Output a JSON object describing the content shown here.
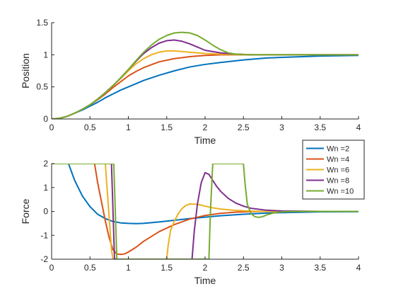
{
  "chart_data": [
    {
      "type": "line",
      "xlabel": "Time",
      "ylabel": "Position",
      "xlim": [
        0,
        4
      ],
      "ylim": [
        0,
        1.5
      ],
      "xticks": [
        0,
        0.5,
        1,
        1.5,
        2,
        2.5,
        3,
        3.5,
        4
      ],
      "yticks": [
        0,
        0.5,
        1,
        1.5
      ],
      "grid": false,
      "series": [
        {
          "name": "Wn =2",
          "color": "#0072BD",
          "x": [
            0,
            0.1,
            0.2,
            0.3,
            0.4,
            0.5,
            0.6,
            0.7,
            0.8,
            0.9,
            1.0,
            1.2,
            1.4,
            1.6,
            1.8,
            2.0,
            2.2,
            2.5,
            2.8,
            3.0,
            3.5,
            4.0
          ],
          "y": [
            0,
            0.01,
            0.04,
            0.09,
            0.14,
            0.2,
            0.26,
            0.33,
            0.39,
            0.45,
            0.5,
            0.6,
            0.68,
            0.75,
            0.81,
            0.85,
            0.88,
            0.92,
            0.95,
            0.96,
            0.98,
            0.99
          ]
        },
        {
          "name": "Wn =4",
          "color": "#D95319",
          "x": [
            0,
            0.1,
            0.2,
            0.3,
            0.4,
            0.5,
            0.6,
            0.7,
            0.8,
            0.9,
            1.0,
            1.1,
            1.2,
            1.4,
            1.6,
            1.8,
            2.0,
            2.2,
            2.5,
            3.0,
            3.5,
            4.0
          ],
          "y": [
            0,
            0.01,
            0.04,
            0.09,
            0.15,
            0.22,
            0.3,
            0.39,
            0.49,
            0.58,
            0.67,
            0.74,
            0.8,
            0.89,
            0.94,
            0.97,
            0.99,
            1.0,
            1.0,
            1.0,
            1.0,
            1.0
          ]
        },
        {
          "name": "Wn =6",
          "color": "#EDB120",
          "x": [
            0,
            0.1,
            0.2,
            0.3,
            0.4,
            0.5,
            0.6,
            0.7,
            0.8,
            0.9,
            1.0,
            1.1,
            1.2,
            1.3,
            1.4,
            1.5,
            1.6,
            1.8,
            2.0,
            2.2,
            2.5,
            3.0,
            3.5,
            4.0
          ],
          "y": [
            0,
            0.01,
            0.04,
            0.09,
            0.15,
            0.22,
            0.31,
            0.41,
            0.52,
            0.63,
            0.75,
            0.86,
            0.94,
            1.0,
            1.04,
            1.06,
            1.06,
            1.04,
            1.02,
            1.01,
            1.0,
            1.0,
            1.0,
            1.0
          ]
        },
        {
          "name": "Wn =8",
          "color": "#7E2F8E",
          "x": [
            0,
            0.1,
            0.2,
            0.3,
            0.4,
            0.5,
            0.6,
            0.7,
            0.8,
            0.9,
            1.0,
            1.1,
            1.2,
            1.3,
            1.4,
            1.5,
            1.6,
            1.7,
            1.8,
            1.9,
            2.0,
            2.2,
            2.4,
            2.6,
            3.0,
            3.5,
            4.0
          ],
          "y": [
            0,
            0.01,
            0.04,
            0.09,
            0.15,
            0.22,
            0.31,
            0.41,
            0.52,
            0.64,
            0.77,
            0.9,
            1.02,
            1.11,
            1.18,
            1.22,
            1.23,
            1.21,
            1.17,
            1.12,
            1.07,
            1.03,
            1.01,
            1.0,
            1.0,
            1.0,
            1.0
          ]
        },
        {
          "name": "Wn =10",
          "color": "#77AC30",
          "x": [
            0,
            0.1,
            0.2,
            0.3,
            0.4,
            0.5,
            0.6,
            0.7,
            0.8,
            0.9,
            1.0,
            1.1,
            1.2,
            1.3,
            1.4,
            1.5,
            1.6,
            1.7,
            1.8,
            1.9,
            2.0,
            2.1,
            2.2,
            2.3,
            2.4,
            2.6,
            2.8,
            3.0,
            3.5,
            4.0
          ],
          "y": [
            0,
            0.01,
            0.04,
            0.09,
            0.15,
            0.22,
            0.31,
            0.41,
            0.52,
            0.64,
            0.77,
            0.91,
            1.04,
            1.15,
            1.24,
            1.3,
            1.34,
            1.35,
            1.34,
            1.3,
            1.23,
            1.15,
            1.08,
            1.03,
            1.01,
            1.0,
            1.0,
            1.0,
            1.0,
            1.0
          ]
        }
      ]
    },
    {
      "type": "line",
      "xlabel": "Time",
      "ylabel": "Force",
      "xlim": [
        0,
        4
      ],
      "ylim": [
        -2,
        2
      ],
      "xticks": [
        0,
        0.5,
        1,
        1.5,
        2,
        2.5,
        3,
        3.5,
        4
      ],
      "yticks": [
        -2,
        -1,
        0,
        1,
        2
      ],
      "grid": false,
      "legend": {
        "placement": "top-right",
        "entries": [
          "Wn =2",
          "Wn =4",
          "Wn =6",
          "Wn =8",
          "Wn =10"
        ]
      },
      "series": [
        {
          "name": "Wn =2",
          "color": "#0072BD",
          "x": [
            0,
            0.22,
            0.3,
            0.4,
            0.5,
            0.6,
            0.7,
            0.8,
            0.9,
            1.0,
            1.1,
            1.2,
            1.4,
            1.6,
            1.8,
            2.0,
            2.2,
            2.5,
            2.8,
            3.0,
            3.5,
            4.0
          ],
          "y": [
            2,
            2,
            1.3,
            0.65,
            0.2,
            -0.12,
            -0.3,
            -0.42,
            -0.48,
            -0.5,
            -0.51,
            -0.5,
            -0.44,
            -0.37,
            -0.3,
            -0.24,
            -0.18,
            -0.12,
            -0.07,
            -0.05,
            -0.02,
            -0.01
          ]
        },
        {
          "name": "Wn =4",
          "color": "#D95319",
          "x": [
            0,
            0.56,
            0.6,
            0.65,
            0.7,
            0.75,
            0.8,
            0.85,
            0.9,
            0.95,
            1.0,
            1.1,
            1.2,
            1.4,
            1.6,
            1.8,
            2.0,
            2.2,
            2.4,
            2.7,
            3.0,
            3.5,
            4.0
          ],
          "y": [
            2,
            2,
            1.2,
            0.4,
            -0.4,
            -1.1,
            -1.6,
            -1.78,
            -1.8,
            -1.78,
            -1.7,
            -1.5,
            -1.25,
            -0.85,
            -0.55,
            -0.32,
            -0.17,
            -0.08,
            -0.03,
            0.0,
            0.01,
            0.0,
            0.0
          ]
        },
        {
          "name": "Wn =6",
          "color": "#EDB120",
          "x": [
            0,
            0.7,
            0.74,
            0.78,
            0.8,
            0.82,
            1.5,
            1.52,
            1.55,
            1.6,
            1.65,
            1.7,
            1.75,
            1.8,
            1.9,
            2.0,
            2.1,
            2.2,
            2.4,
            2.6,
            2.8,
            3.0,
            3.5,
            4.0
          ],
          "y": [
            2,
            2,
            0.2,
            -1.6,
            -2,
            -2,
            -2,
            -1.4,
            -0.8,
            -0.4,
            -0.1,
            0.12,
            0.25,
            0.31,
            0.3,
            0.22,
            0.15,
            0.1,
            0.04,
            0.01,
            0.0,
            0.0,
            0.0,
            0.0
          ]
        },
        {
          "name": "Wn =8",
          "color": "#7E2F8E",
          "x": [
            0,
            0.78,
            0.8,
            0.82,
            1.83,
            1.86,
            1.9,
            1.95,
            2.0,
            2.05,
            2.1,
            2.15,
            2.2,
            2.3,
            2.4,
            2.5,
            2.6,
            2.8,
            3.0,
            3.2,
            3.5,
            4.0
          ],
          "y": [
            2,
            2,
            0,
            -2,
            -2,
            -0.8,
            0.3,
            1.2,
            1.62,
            1.55,
            1.3,
            1.05,
            0.85,
            0.55,
            0.35,
            0.22,
            0.13,
            0.05,
            0.02,
            0.01,
            0.0,
            0.0
          ],
          "comment": ""
        },
        {
          "name": "Wn =10",
          "color": "#77AC30",
          "x": [
            0,
            0.81,
            0.83,
            0.85,
            2.05,
            2.07,
            2.1,
            2.5,
            2.52,
            2.55,
            2.6,
            2.65,
            2.7,
            2.75,
            2.8,
            2.9,
            3.0,
            3.2,
            3.5,
            4.0
          ],
          "y": [
            2,
            2,
            0,
            -2,
            -2,
            0,
            2,
            2,
            1.2,
            0.3,
            -0.1,
            -0.22,
            -0.25,
            -0.22,
            -0.15,
            -0.06,
            -0.02,
            0.0,
            0.0,
            0.0
          ]
        }
      ]
    }
  ]
}
